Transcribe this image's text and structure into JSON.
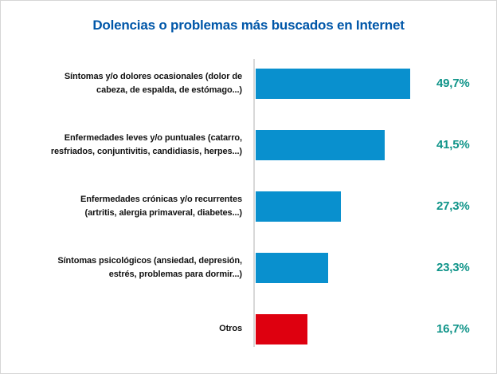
{
  "title": "Dolencias o problemas más buscados en Internet",
  "colors": {
    "title": "#0057A9",
    "bar_blue": "#0990CE",
    "bar_red": "#DE000F",
    "value_text": "#0F9489",
    "axis_line": "#D8D8D8",
    "label_text": "#111111",
    "background": "#FFFFFF"
  },
  "chart_data": {
    "type": "bar",
    "orientation": "horizontal",
    "title": "Dolencias o problemas más buscados en Internet",
    "xlabel": "",
    "ylabel": "",
    "unit": "percent",
    "xlim": [
      0,
      55
    ],
    "grid": false,
    "legend": false,
    "categories": [
      "Síntomas y/o dolores ocasionales (dolor de cabeza, de espalda, de estómago...)",
      "Enfermedades leves y/o puntuales (catarro, resfriados, conjuntivitis, candidiasis, herpes...)",
      "Enfermedades crónicas y/o recurrentes (artritis, alergia primaveral, diabetes...)",
      "Síntomas psicológicos (ansiedad, depresión, estrés, problemas para dormir...)",
      "Otros"
    ],
    "values": [
      49.7,
      41.5,
      27.3,
      23.3,
      16.7
    ],
    "rows": [
      {
        "label_lines": [
          "Síntomas y/o dolores ocasionales (dolor de",
          "cabeza, de espalda, de estómago...)"
        ],
        "value": 49.7,
        "value_label": "49,7%",
        "color": "#0990CE"
      },
      {
        "label_lines": [
          "Enfermedades leves y/o puntuales (catarro,",
          "resfriados, conjuntivitis, candidiasis, herpes...)"
        ],
        "value": 41.5,
        "value_label": "41,5%",
        "color": "#0990CE"
      },
      {
        "label_lines": [
          "Enfermedades crónicas y/o recurrentes",
          "(artritis, alergia primaveral, diabetes...)"
        ],
        "value": 27.3,
        "value_label": "27,3%",
        "color": "#0990CE"
      },
      {
        "label_lines": [
          "Síntomas psicológicos (ansiedad, depresión,",
          "estrés, problemas para dormir...)"
        ],
        "value": 23.3,
        "value_label": "23,3%",
        "color": "#0990CE"
      },
      {
        "label_lines": [
          "Otros"
        ],
        "value": 16.7,
        "value_label": "16,7%",
        "color": "#DE000F"
      }
    ]
  }
}
